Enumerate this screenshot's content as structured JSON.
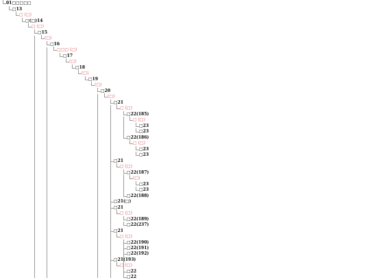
{
  "tree": {
    "nodes": [
      {
        "text": "01□□□□□",
        "red": false
      },
      {
        "text": "□13",
        "red": false
      },
      {
        "text": "□ (□)",
        "red": true
      },
      {
        "text": "□(□)14",
        "red": false
      },
      {
        "text": "□ (□)",
        "red": true
      },
      {
        "text": "□15",
        "red": false
      },
      {
        "text": "(□)",
        "red": true
      },
      {
        "text": "□16",
        "red": false
      },
      {
        "text": "□□□ (□)",
        "red": true
      },
      {
        "text": "□17",
        "red": false
      },
      {
        "text": "(□)",
        "red": true
      },
      {
        "text": "□18",
        "red": false
      },
      {
        "text": "(□)",
        "red": true
      },
      {
        "text": "□19",
        "red": false
      },
      {
        "text": "(□)",
        "red": true
      },
      {
        "text": "□20",
        "red": false
      },
      {
        "text": "(□)",
        "red": true
      },
      {
        "text": "□21",
        "red": false
      },
      {
        "text": "□ (□)",
        "red": true
      },
      {
        "text": "□22(185)",
        "red": false
      },
      {
        "text": "□ (□)",
        "red": true
      },
      {
        "text": "□23",
        "red": false
      },
      {
        "text": "□23",
        "red": false
      },
      {
        "text": "□22(186)",
        "red": false
      },
      {
        "text": "□ (□)",
        "red": true
      },
      {
        "text": "□23",
        "red": false
      },
      {
        "text": "□23",
        "red": false
      },
      {
        "text": "□21",
        "red": false
      },
      {
        "text": "□ (□)",
        "red": true
      },
      {
        "text": "□22(187)",
        "red": false
      },
      {
        "text": "(□)",
        "red": true
      },
      {
        "text": "□23",
        "red": false
      },
      {
        "text": "□23",
        "red": false
      },
      {
        "text": "□22(188)",
        "red": false
      },
      {
        "text": "□21(□)",
        "red": false
      },
      {
        "text": "□21",
        "red": false
      },
      {
        "text": "□ (□)",
        "red": true
      },
      {
        "text": "□22(189)",
        "red": false
      },
      {
        "text": "□22(237)",
        "red": false
      },
      {
        "text": "□21",
        "red": false
      },
      {
        "text": "□ (□)",
        "red": true
      },
      {
        "text": "□22(190)",
        "red": false
      },
      {
        "text": "□22(191)",
        "red": false
      },
      {
        "text": "□22(192)",
        "red": false
      },
      {
        "text": "□21(193)",
        "red": false
      },
      {
        "text": "□ (□)",
        "red": true
      },
      {
        "text": "□22",
        "red": false
      },
      {
        "text": "□22",
        "red": false
      }
    ]
  }
}
